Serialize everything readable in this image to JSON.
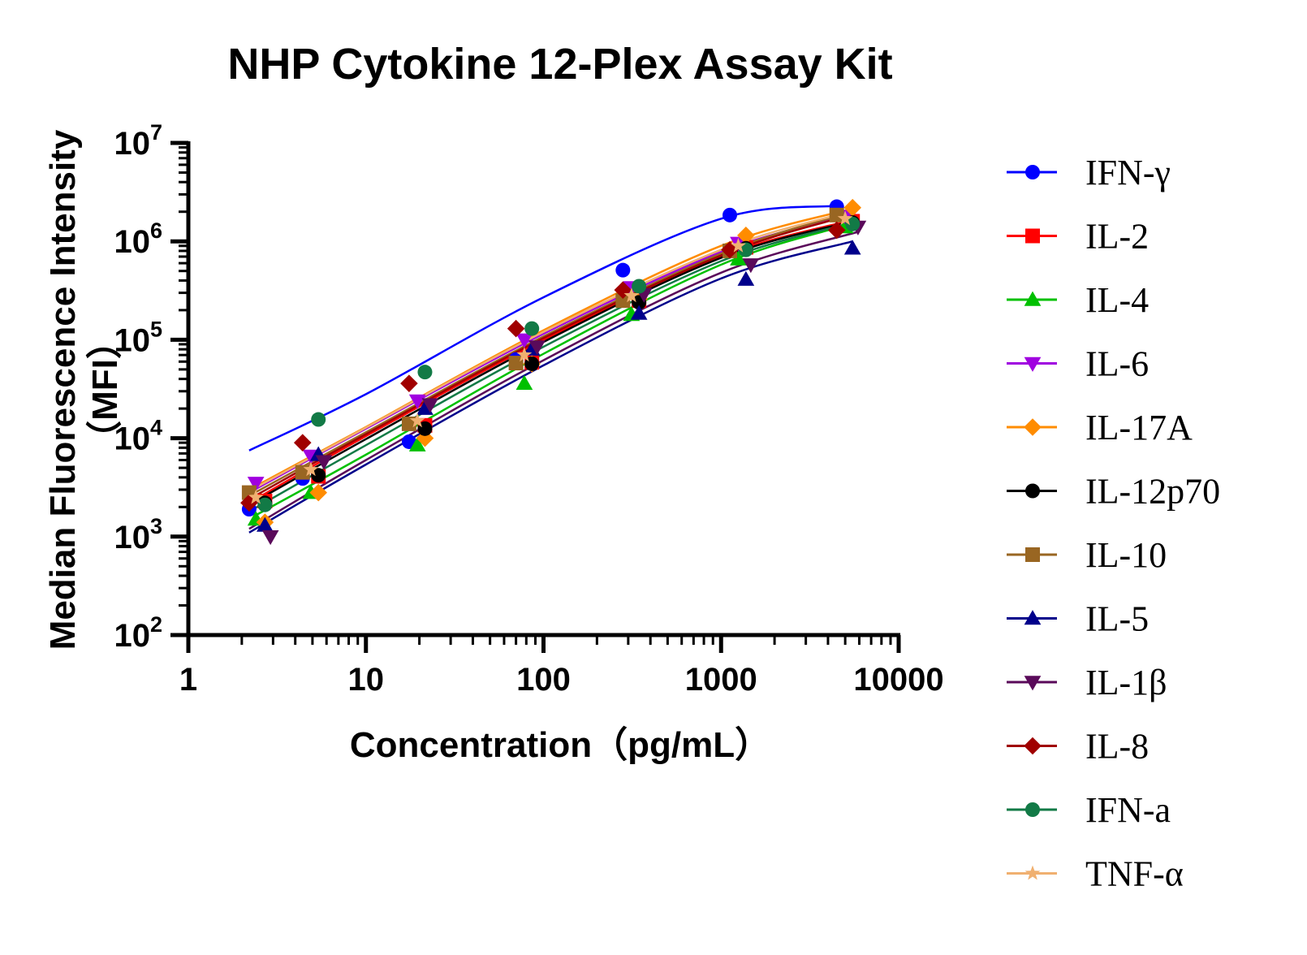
{
  "chart_data": {
    "type": "scatter",
    "title": "NHP Cytokine 12-Plex Assay Kit",
    "xlabel": "Concentration（pg/mL）",
    "ylabel_line1": "Median Fluorescence Intensity",
    "ylabel_line2": "（MFI）",
    "xscale": "log",
    "yscale": "log",
    "xlim": [
      1,
      10000
    ],
    "ylim": [
      100,
      10000000
    ],
    "x_ticks": [
      "1",
      "10",
      "100",
      "1000",
      "10000"
    ],
    "y_ticks": [
      {
        "base": "10",
        "exp": "2",
        "value": 100
      },
      {
        "base": "10",
        "exp": "3",
        "value": 1000
      },
      {
        "base": "10",
        "exp": "4",
        "value": 10000
      },
      {
        "base": "10",
        "exp": "5",
        "value": 100000
      },
      {
        "base": "10",
        "exp": "6",
        "value": 1000000
      },
      {
        "base": "10",
        "exp": "7",
        "value": 10000000
      }
    ],
    "legend_position": "right",
    "series": [
      {
        "name": "IFN-γ",
        "color": "#0000ff",
        "marker": "circle",
        "x": [
          2.2,
          4.4,
          17.5,
          70,
          280,
          1120,
          4480
        ],
        "y": [
          1900,
          3900,
          9200,
          63000,
          510000,
          1850000,
          2250000
        ],
        "fit": [
          [
            2.2,
            7500
          ],
          [
            10,
            28000
          ],
          [
            100,
            270000
          ],
          [
            1000,
            1700000
          ],
          [
            4480,
            2300000
          ]
        ]
      },
      {
        "name": "IL-2",
        "color": "#ff0000",
        "marker": "square",
        "x": [
          2.7,
          5.4,
          21.5,
          86,
          345,
          1380,
          5500
        ],
        "y": [
          2300,
          4100,
          13500,
          59000,
          250000,
          870000,
          1600000
        ],
        "fit": [
          [
            2.2,
            2200
          ],
          [
            10,
            10500
          ],
          [
            100,
            100000
          ],
          [
            1000,
            700000
          ],
          [
            5500,
            1650000
          ]
        ]
      },
      {
        "name": "IL-4",
        "color": "#00c000",
        "marker": "triangle",
        "x": [
          2.4,
          4.9,
          19.5,
          78,
          313,
          1250,
          5000
        ],
        "y": [
          1500,
          2800,
          8500,
          36000,
          180000,
          660000,
          1400000
        ],
        "fit": [
          [
            2.4,
            1650
          ],
          [
            10,
            6800
          ],
          [
            100,
            72000
          ],
          [
            1000,
            580000
          ],
          [
            5000,
            1450000
          ]
        ]
      },
      {
        "name": "IL-6",
        "color": "#a000e0",
        "marker": "triangle-down",
        "x": [
          2.4,
          4.9,
          19.5,
          78,
          313,
          1250,
          5000
        ],
        "y": [
          3500,
          6600,
          24000,
          100000,
          340000,
          960000,
          1800000
        ],
        "fit": [
          [
            2.2,
            2800
          ],
          [
            10,
            12500
          ],
          [
            100,
            115000
          ],
          [
            1000,
            780000
          ],
          [
            5000,
            1800000
          ]
        ]
      },
      {
        "name": "IL-17A",
        "color": "#ff8c00",
        "marker": "diamond",
        "x": [
          2.7,
          5.4,
          21.5,
          86,
          345,
          1380,
          5500
        ],
        "y": [
          1400,
          2800,
          10000,
          57000,
          260000,
          1150000,
          2200000
        ],
        "fit": [
          [
            2.2,
            3000
          ],
          [
            10,
            13000
          ],
          [
            100,
            125000
          ],
          [
            1000,
            900000
          ],
          [
            5500,
            2150000
          ]
        ]
      },
      {
        "name": "IL-12p70",
        "color": "#000000",
        "marker": "circle",
        "x": [
          2.7,
          5.4,
          21.5,
          86,
          345,
          1380,
          5500
        ],
        "y": [
          2200,
          4200,
          12500,
          57000,
          240000,
          850000,
          1550000
        ],
        "fit": [
          [
            2.2,
            2100
          ],
          [
            10,
            9800
          ],
          [
            100,
            95000
          ],
          [
            1000,
            680000
          ],
          [
            5500,
            1600000
          ]
        ]
      },
      {
        "name": "IL-10",
        "color": "#996622",
        "marker": "square",
        "x": [
          2.2,
          4.4,
          17.5,
          70,
          280,
          1120,
          4480
        ],
        "y": [
          2800,
          4500,
          14000,
          58000,
          250000,
          800000,
          1850000
        ],
        "fit": [
          [
            2.2,
            2600
          ],
          [
            10,
            11500
          ],
          [
            100,
            108000
          ],
          [
            1000,
            750000
          ],
          [
            4480,
            1800000
          ]
        ]
      },
      {
        "name": "IL-5",
        "color": "#00008b",
        "marker": "triangle",
        "x": [
          2.7,
          5.4,
          21.5,
          86,
          345,
          1380,
          5500
        ],
        "y": [
          1300,
          6800,
          20000,
          80000,
          185000,
          410000,
          850000
        ],
        "fit": [
          [
            2.2,
            1100
          ],
          [
            10,
            5400
          ],
          [
            100,
            55000
          ],
          [
            1000,
            420000
          ],
          [
            5500,
            1000000
          ]
        ]
      },
      {
        "name": "IL-1β",
        "color": "#5a0a5a",
        "marker": "triangle-down",
        "x": [
          2.9,
          5.8,
          23,
          92,
          368,
          1470,
          5900
        ],
        "y": [
          1000,
          5800,
          22000,
          85000,
          290000,
          580000,
          1400000
        ],
        "fit": [
          [
            2.2,
            1200
          ],
          [
            10,
            6000
          ],
          [
            100,
            62000
          ],
          [
            1000,
            480000
          ],
          [
            5900,
            1250000
          ]
        ]
      },
      {
        "name": "IL-8",
        "color": "#a00000",
        "marker": "diamond",
        "x": [
          2.2,
          4.4,
          17.5,
          70,
          280,
          1120,
          4480
        ],
        "y": [
          2200,
          9000,
          36000,
          130000,
          320000,
          820000,
          1300000
        ],
        "fit": [
          [
            2.2,
            2400
          ],
          [
            10,
            11000
          ],
          [
            100,
            104000
          ],
          [
            1000,
            720000
          ],
          [
            4480,
            1700000
          ]
        ]
      },
      {
        "name": "IFN-a",
        "color": "#127a46",
        "marker": "circle",
        "x": [
          2.7,
          5.4,
          21.5,
          86,
          345,
          1380,
          5500
        ],
        "y": [
          2100,
          15500,
          47000,
          130000,
          350000,
          820000,
          1500000
        ],
        "fit": [
          [
            2.2,
            1800
          ],
          [
            10,
            8500
          ],
          [
            100,
            85000
          ],
          [
            1000,
            630000
          ],
          [
            5500,
            1550000
          ]
        ]
      },
      {
        "name": "TNF-α",
        "color": "#f0b070",
        "marker": "star",
        "x": [
          2.4,
          4.9,
          19.5,
          78,
          313,
          1250,
          5000
        ],
        "y": [
          2500,
          4800,
          15000,
          70000,
          280000,
          900000,
          1700000
        ],
        "fit": [
          [
            2.2,
            2900
          ],
          [
            10,
            12800
          ],
          [
            100,
            120000
          ],
          [
            1000,
            820000
          ],
          [
            5000,
            1950000
          ]
        ]
      }
    ]
  }
}
